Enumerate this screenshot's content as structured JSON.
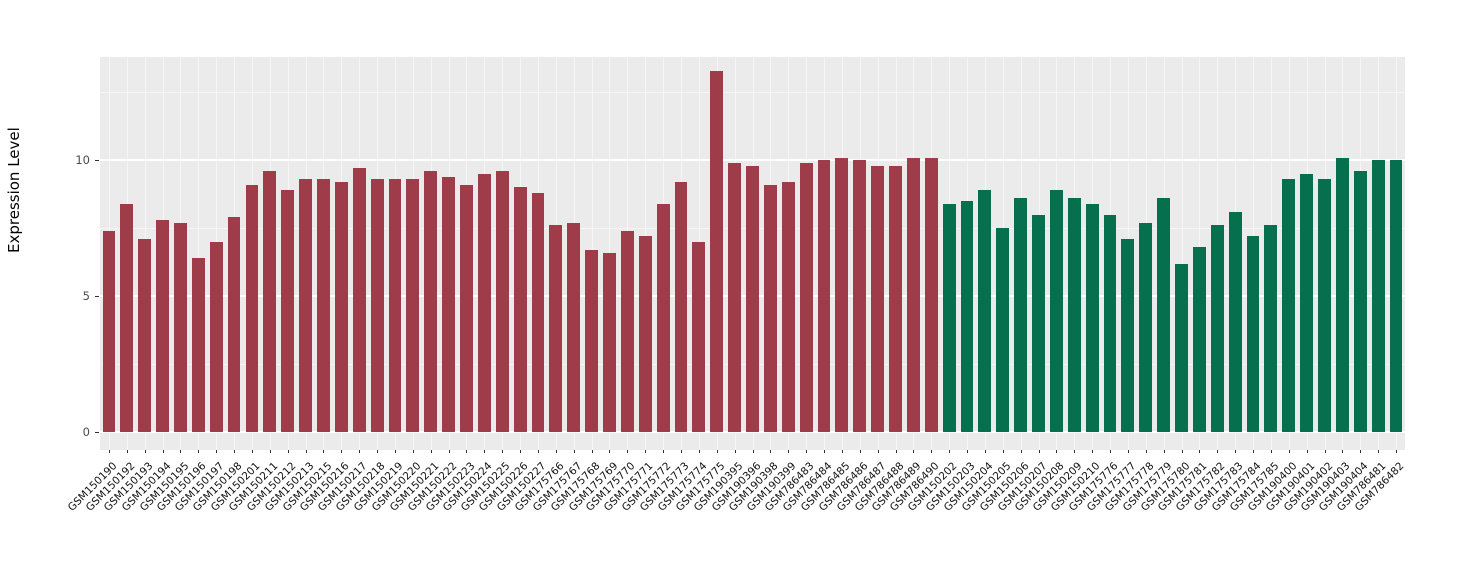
{
  "chart_data": {
    "type": "bar",
    "title": "",
    "xlabel": "",
    "ylabel": "Expression Level",
    "ylim": [
      0,
      13.8
    ],
    "yticks_major": [
      0,
      5,
      10
    ],
    "yticks_minor": [
      2.5,
      7.5,
      12.5
    ],
    "legend": "none",
    "grid": "on",
    "panel_background": "#EBEBEB",
    "colors": {
      "group1": "#9E3C49",
      "group2": "#06704E"
    },
    "bars": [
      {
        "label": "GSM150190",
        "value": 7.4,
        "group": "group1"
      },
      {
        "label": "GSM150192",
        "value": 8.4,
        "group": "group1"
      },
      {
        "label": "GSM150193",
        "value": 7.1,
        "group": "group1"
      },
      {
        "label": "GSM150194",
        "value": 7.8,
        "group": "group1"
      },
      {
        "label": "GSM150195",
        "value": 7.7,
        "group": "group1"
      },
      {
        "label": "GSM150196",
        "value": 6.4,
        "group": "group1"
      },
      {
        "label": "GSM150197",
        "value": 7.0,
        "group": "group1"
      },
      {
        "label": "GSM150198",
        "value": 7.9,
        "group": "group1"
      },
      {
        "label": "GSM150201",
        "value": 9.1,
        "group": "group1"
      },
      {
        "label": "GSM150211",
        "value": 9.6,
        "group": "group1"
      },
      {
        "label": "GSM150212",
        "value": 8.9,
        "group": "group1"
      },
      {
        "label": "GSM150213",
        "value": 9.3,
        "group": "group1"
      },
      {
        "label": "GSM150215",
        "value": 9.3,
        "group": "group1"
      },
      {
        "label": "GSM150216",
        "value": 9.2,
        "group": "group1"
      },
      {
        "label": "GSM150217",
        "value": 9.7,
        "group": "group1"
      },
      {
        "label": "GSM150218",
        "value": 9.3,
        "group": "group1"
      },
      {
        "label": "GSM150219",
        "value": 9.3,
        "group": "group1"
      },
      {
        "label": "GSM150220",
        "value": 9.3,
        "group": "group1"
      },
      {
        "label": "GSM150221",
        "value": 9.6,
        "group": "group1"
      },
      {
        "label": "GSM150222",
        "value": 9.4,
        "group": "group1"
      },
      {
        "label": "GSM150223",
        "value": 9.1,
        "group": "group1"
      },
      {
        "label": "GSM150224",
        "value": 9.5,
        "group": "group1"
      },
      {
        "label": "GSM150225",
        "value": 9.6,
        "group": "group1"
      },
      {
        "label": "GSM150226",
        "value": 9.0,
        "group": "group1"
      },
      {
        "label": "GSM150227",
        "value": 8.8,
        "group": "group1"
      },
      {
        "label": "GSM175766",
        "value": 7.6,
        "group": "group1"
      },
      {
        "label": "GSM175767",
        "value": 7.7,
        "group": "group1"
      },
      {
        "label": "GSM175768",
        "value": 6.7,
        "group": "group1"
      },
      {
        "label": "GSM175769",
        "value": 6.6,
        "group": "group1"
      },
      {
        "label": "GSM175770",
        "value": 7.4,
        "group": "group1"
      },
      {
        "label": "GSM175771",
        "value": 7.2,
        "group": "group1"
      },
      {
        "label": "GSM175772",
        "value": 8.4,
        "group": "group1"
      },
      {
        "label": "GSM175773",
        "value": 9.2,
        "group": "group1"
      },
      {
        "label": "GSM175774",
        "value": 7.0,
        "group": "group1"
      },
      {
        "label": "GSM175775",
        "value": 13.3,
        "group": "group1"
      },
      {
        "label": "GSM190395",
        "value": 9.9,
        "group": "group1"
      },
      {
        "label": "GSM190396",
        "value": 9.8,
        "group": "group1"
      },
      {
        "label": "GSM190398",
        "value": 9.1,
        "group": "group1"
      },
      {
        "label": "GSM190399",
        "value": 9.2,
        "group": "group1"
      },
      {
        "label": "GSM786483",
        "value": 9.9,
        "group": "group1"
      },
      {
        "label": "GSM786484",
        "value": 10.0,
        "group": "group1"
      },
      {
        "label": "GSM786485",
        "value": 10.1,
        "group": "group1"
      },
      {
        "label": "GSM786486",
        "value": 10.0,
        "group": "group1"
      },
      {
        "label": "GSM786487",
        "value": 9.8,
        "group": "group1"
      },
      {
        "label": "GSM786488",
        "value": 9.8,
        "group": "group1"
      },
      {
        "label": "GSM786489",
        "value": 10.1,
        "group": "group1"
      },
      {
        "label": "GSM786490",
        "value": 10.1,
        "group": "group1"
      },
      {
        "label": "GSM150202",
        "value": 8.4,
        "group": "group2"
      },
      {
        "label": "GSM150203",
        "value": 8.5,
        "group": "group2"
      },
      {
        "label": "GSM150204",
        "value": 8.9,
        "group": "group2"
      },
      {
        "label": "GSM150205",
        "value": 7.5,
        "group": "group2"
      },
      {
        "label": "GSM150206",
        "value": 8.6,
        "group": "group2"
      },
      {
        "label": "GSM150207",
        "value": 8.0,
        "group": "group2"
      },
      {
        "label": "GSM150208",
        "value": 8.9,
        "group": "group2"
      },
      {
        "label": "GSM150209",
        "value": 8.6,
        "group": "group2"
      },
      {
        "label": "GSM150210",
        "value": 8.4,
        "group": "group2"
      },
      {
        "label": "GSM175776",
        "value": 8.0,
        "group": "group2"
      },
      {
        "label": "GSM175777",
        "value": 7.1,
        "group": "group2"
      },
      {
        "label": "GSM175778",
        "value": 7.7,
        "group": "group2"
      },
      {
        "label": "GSM175779",
        "value": 8.6,
        "group": "group2"
      },
      {
        "label": "GSM175780",
        "value": 6.2,
        "group": "group2"
      },
      {
        "label": "GSM175781",
        "value": 6.8,
        "group": "group2"
      },
      {
        "label": "GSM175782",
        "value": 7.6,
        "group": "group2"
      },
      {
        "label": "GSM175783",
        "value": 8.1,
        "group": "group2"
      },
      {
        "label": "GSM175784",
        "value": 7.2,
        "group": "group2"
      },
      {
        "label": "GSM175785",
        "value": 7.6,
        "group": "group2"
      },
      {
        "label": "GSM190400",
        "value": 9.3,
        "group": "group2"
      },
      {
        "label": "GSM190401",
        "value": 9.5,
        "group": "group2"
      },
      {
        "label": "GSM190402",
        "value": 9.3,
        "group": "group2"
      },
      {
        "label": "GSM190403",
        "value": 10.1,
        "group": "group2"
      },
      {
        "label": "GSM190404",
        "value": 9.6,
        "group": "group2"
      },
      {
        "label": "GSM786481",
        "value": 10.0,
        "group": "group2"
      },
      {
        "label": "GSM786482",
        "value": 10.0,
        "group": "group2"
      }
    ]
  }
}
